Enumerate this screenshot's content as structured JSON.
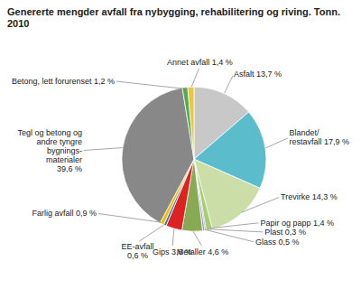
{
  "chart_data": {
    "type": "pie",
    "title": "Genererte mengder avfall fra nybygging, rehabilitering og riving. Tonn.\n2010",
    "values": [
      13.7,
      17.9,
      14.3,
      1.4,
      0.3,
      0.5,
      4.6,
      3.6,
      0.6,
      0.9,
      39.6,
      1.2,
      1.4
    ],
    "value_labels": [
      "Asfalt 13,7 %",
      "Blandet/\nrestavfall 17,9 %",
      "Trevirke 14,3 %",
      "Papir og papp 1,4 %",
      "Plast 0,3 %",
      "Glass 0,5 %",
      "Metaller 4,6 %",
      "Gips 3,6 %",
      "EE-avfall\n0,6 %",
      "Farlig avfall 0,9 %",
      "Tegl og betong og\nandre tyngre\nbygnings-\nmaterialer\n39,6 %",
      "Betong, lett forurenset 1,2 %",
      "Annet avfall 1,4 %"
    ],
    "colors": [
      "#c8c8c8",
      "#5bbccc",
      "#ccdea8",
      "#a8cc70",
      "#8888bb",
      "#9999cc",
      "#88aa55",
      "#dd2222",
      "#3377bb",
      "#f0c000",
      "#888888",
      "#55aa55",
      "#e8c840"
    ],
    "data_labels": true
  }
}
